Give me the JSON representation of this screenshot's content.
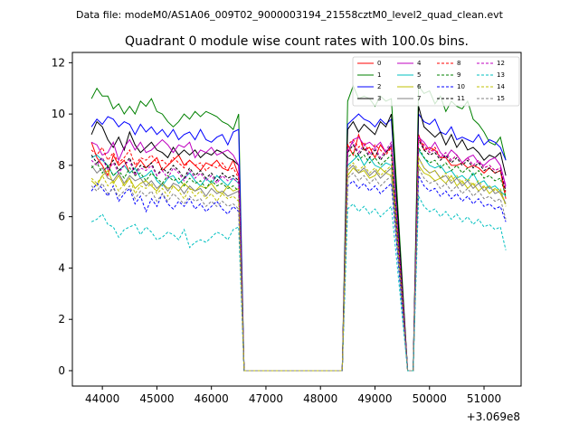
{
  "suptitle": "Data file: modeM0/AS1A06_009T02_9000003194_21558cztM0_level2_quad_clean.evt",
  "chart_data": {
    "type": "line",
    "title": "Quadrant 0 module wise count rates with 100.0s bins.",
    "xlabel": "",
    "ylabel": "",
    "x_offset_label": "+3.069e8",
    "xlim": [
      43450,
      51680
    ],
    "ylim": [
      -0.6,
      12.4
    ],
    "xticks": [
      44000,
      45000,
      46000,
      47000,
      48000,
      49000,
      50000,
      51000
    ],
    "yticks": [
      0,
      2,
      4,
      6,
      8,
      10,
      12
    ],
    "grid": false,
    "legend_position": "top-right",
    "x_start": 43800,
    "x_step": 100,
    "gaps": [
      {
        "from": 46600,
        "to": 48400,
        "value": 0
      },
      {
        "from": 49600,
        "to": 49700,
        "value": 0
      }
    ],
    "series": [
      {
        "name": "0",
        "color": "#ff0000",
        "dash": false,
        "seg1": [
          8.9,
          8.3,
          8.0,
          7.6,
          8.4,
          8.0,
          8.2,
          7.7,
          7.9,
          8.2,
          7.9,
          8.1,
          8.3,
          7.8,
          8.0,
          8.2,
          8.4,
          8.0,
          8.2,
          8.0,
          7.8,
          8.1,
          8.0,
          8.2,
          7.9,
          7.8,
          8.2,
          7.6
        ],
        "seg2": [
          8.8,
          8.4,
          9.2,
          8.6,
          8.7,
          8.3,
          8.8,
          8.5,
          8.7
        ],
        "seg3": [
          9.2,
          8.6,
          8.7,
          8.6,
          8.3,
          8.3,
          8.0,
          8.0,
          8.1,
          7.9,
          8.0,
          7.9,
          7.7,
          7.9,
          7.7,
          7.8,
          6.7
        ]
      },
      {
        "name": "1",
        "color": "#008000",
        "dash": false,
        "seg1": [
          10.6,
          11.0,
          10.7,
          10.7,
          10.2,
          10.4,
          10.0,
          10.3,
          10.0,
          10.5,
          10.3,
          10.6,
          10.1,
          10.0,
          9.7,
          9.5,
          9.7,
          10.0,
          9.8,
          10.1,
          9.9,
          10.1,
          10.0,
          9.9,
          9.7,
          9.6,
          9.4,
          10.0
        ],
        "seg2": [
          10.5,
          11.1,
          10.6,
          10.7,
          10.6,
          10.3,
          10.7,
          10.5,
          10.6
        ],
        "seg3": [
          11.1,
          10.8,
          10.9,
          10.4,
          10.7,
          10.1,
          10.5,
          10.3,
          10.2,
          10.5,
          9.8,
          9.6,
          9.3,
          8.9,
          8.8,
          9.1,
          8.2
        ]
      },
      {
        "name": "2",
        "color": "#0000ff",
        "dash": false,
        "seg1": [
          9.5,
          9.8,
          9.6,
          9.9,
          9.8,
          9.5,
          9.7,
          9.6,
          9.2,
          9.6,
          9.3,
          9.5,
          9.2,
          9.4,
          9.1,
          9.4,
          9.0,
          9.2,
          9.3,
          9.0,
          9.4,
          9.0,
          8.9,
          9.1,
          9.2,
          8.8,
          9.3,
          9.4
        ],
        "seg2": [
          9.6,
          9.8,
          10.0,
          9.8,
          9.7,
          9.5,
          9.8,
          9.6,
          9.8
        ],
        "seg3": [
          10.0,
          9.7,
          9.6,
          9.8,
          9.3,
          9.2,
          9.5,
          9.0,
          9.1,
          9.0,
          8.9,
          9.2,
          8.8,
          9.0,
          8.9,
          8.7,
          8.2
        ]
      },
      {
        "name": "3",
        "color": "#000000",
        "dash": false,
        "seg1": [
          9.2,
          9.7,
          9.5,
          9.0,
          8.7,
          9.1,
          8.6,
          9.3,
          8.8,
          8.5,
          8.7,
          8.9,
          8.6,
          8.5,
          8.3,
          8.7,
          8.4,
          8.6,
          8.4,
          8.6,
          8.3,
          8.5,
          8.4,
          8.6,
          8.5,
          8.3,
          8.2,
          8.0
        ],
        "seg2": [
          9.4,
          9.7,
          9.3,
          9.6,
          9.4,
          9.2,
          9.7,
          9.5,
          10.0
        ],
        "seg3": [
          10.3,
          9.5,
          9.3,
          9.1,
          9.3,
          8.8,
          9.2,
          8.7,
          9.0,
          8.6,
          8.7,
          8.5,
          8.2,
          8.4,
          8.3,
          8.5,
          7.6
        ]
      },
      {
        "name": "4",
        "color": "#c000c0",
        "dash": false,
        "seg1": [
          8.9,
          8.8,
          8.4,
          8.5,
          8.9,
          8.2,
          8.7,
          9.0,
          8.6,
          8.9,
          8.5,
          8.6,
          8.8,
          9.0,
          8.8,
          8.5,
          8.8,
          8.7,
          8.9,
          8.3,
          8.6,
          8.5,
          8.7,
          8.4,
          8.5,
          8.6,
          8.4,
          8.0
        ],
        "seg2": [
          8.5,
          9.0,
          9.1,
          8.8,
          8.9,
          8.7,
          8.9,
          8.5,
          8.8
        ],
        "seg3": [
          9.1,
          8.9,
          8.6,
          8.9,
          8.5,
          8.3,
          8.6,
          8.4,
          8.1,
          8.3,
          8.4,
          8.1,
          8.0,
          8.2,
          8.3,
          8.0,
          7.2
        ]
      },
      {
        "name": "5",
        "color": "#00c0c0",
        "dash": false,
        "seg1": [
          8.3,
          8.4,
          8.2,
          8.0,
          7.6,
          7.8,
          8.0,
          7.7,
          7.9,
          7.5,
          7.6,
          7.8,
          7.4,
          7.2,
          7.5,
          7.6,
          7.3,
          7.5,
          7.7,
          7.4,
          7.2,
          7.5,
          7.3,
          7.6,
          7.4,
          7.2,
          7.5,
          7.3
        ],
        "seg2": [
          8.0,
          8.2,
          8.4,
          8.0,
          8.3,
          8.0,
          7.9,
          8.1,
          8.0
        ],
        "seg3": [
          8.6,
          8.3,
          8.0,
          7.9,
          8.0,
          7.7,
          7.8,
          7.5,
          7.6,
          7.4,
          7.7,
          7.3,
          7.4,
          7.1,
          7.2,
          7.0,
          6.8
        ]
      },
      {
        "name": "6",
        "color": "#c0c000",
        "dash": false,
        "seg1": [
          7.4,
          7.2,
          7.6,
          7.8,
          7.3,
          7.6,
          7.2,
          7.5,
          7.1,
          7.3,
          7.4,
          7.2,
          7.0,
          7.3,
          7.1,
          7.2,
          7.0,
          7.3,
          7.1,
          7.0,
          7.2,
          7.1,
          7.3,
          7.0,
          6.9,
          7.2,
          7.0,
          7.1
        ],
        "seg2": [
          7.6,
          7.9,
          7.7,
          7.8,
          7.5,
          7.6,
          7.9,
          7.7,
          7.6
        ],
        "seg3": [
          8.0,
          7.7,
          7.6,
          7.4,
          7.5,
          7.3,
          7.6,
          7.2,
          7.4,
          7.1,
          7.3,
          7.0,
          7.2,
          6.9,
          7.1,
          6.9,
          6.5
        ]
      },
      {
        "name": "7",
        "color": "#808080",
        "dash": false,
        "seg1": [
          8.0,
          7.7,
          7.9,
          7.5,
          7.4,
          7.7,
          7.3,
          7.6,
          7.4,
          7.5,
          7.2,
          7.4,
          7.1,
          7.3,
          7.0,
          7.3,
          7.2,
          6.9,
          7.2,
          7.0,
          7.1,
          6.8,
          7.1,
          6.9,
          7.0,
          6.8,
          6.9,
          7.0
        ],
        "seg2": [
          7.8,
          8.0,
          7.7,
          7.9,
          7.6,
          7.8,
          7.5,
          7.7,
          7.9
        ],
        "seg3": [
          8.3,
          7.9,
          7.7,
          7.8,
          7.5,
          7.6,
          7.3,
          7.5,
          7.2,
          7.4,
          7.1,
          7.3,
          7.0,
          7.2,
          6.9,
          7.0,
          6.5
        ]
      },
      {
        "name": "8",
        "color": "#ff0000",
        "dash": true,
        "seg1": [
          8.6,
          8.4,
          8.7,
          8.2,
          8.5,
          8.1,
          8.3,
          8.6,
          8.0,
          8.3,
          8.2,
          8.4,
          8.1,
          8.2,
          8.0,
          8.3,
          8.1,
          7.9,
          8.2,
          8.0,
          8.1,
          7.8,
          8.0,
          7.9,
          8.1,
          7.8,
          7.9,
          7.5
        ],
        "seg2": [
          8.8,
          9.0,
          8.7,
          8.9,
          8.5,
          8.8,
          8.6,
          8.4,
          8.7
        ],
        "seg3": [
          9.0,
          8.8,
          8.5,
          8.7,
          8.3,
          8.5,
          8.2,
          8.4,
          8.1,
          8.3,
          8.0,
          8.2,
          7.9,
          8.0,
          7.8,
          7.9,
          6.9
        ]
      },
      {
        "name": "9",
        "color": "#008000",
        "dash": true,
        "seg1": [
          7.9,
          8.1,
          7.7,
          8.0,
          7.6,
          7.8,
          7.5,
          7.9,
          7.6,
          7.7,
          7.4,
          7.7,
          7.5,
          7.3,
          7.6,
          7.4,
          7.5,
          7.2,
          7.5,
          7.3,
          7.4,
          7.1,
          7.4,
          7.2,
          7.3,
          7.1,
          7.2,
          7.0
        ],
        "seg2": [
          8.3,
          8.5,
          8.2,
          8.4,
          8.1,
          8.3,
          8.0,
          8.2,
          8.4
        ],
        "seg3": [
          8.7,
          8.3,
          8.1,
          8.2,
          7.9,
          8.1,
          7.8,
          8.0,
          7.7,
          7.9,
          7.6,
          7.8,
          7.5,
          7.6,
          7.4,
          7.5,
          6.8
        ]
      },
      {
        "name": "10",
        "color": "#0000ff",
        "dash": true,
        "seg1": [
          7.0,
          7.3,
          7.1,
          6.8,
          7.2,
          6.6,
          6.9,
          7.1,
          6.5,
          6.8,
          6.2,
          6.7,
          6.4,
          6.9,
          6.5,
          6.3,
          6.6,
          6.4,
          6.7,
          6.3,
          6.5,
          6.2,
          6.4,
          6.6,
          6.3,
          6.1,
          6.4,
          6.2
        ],
        "seg2": [
          7.2,
          7.4,
          7.1,
          7.3,
          7.0,
          7.2,
          6.9,
          7.1,
          7.3
        ],
        "seg3": [
          7.6,
          7.2,
          7.0,
          7.1,
          6.8,
          7.0,
          6.7,
          6.9,
          6.6,
          6.8,
          6.5,
          6.7,
          6.4,
          6.5,
          6.3,
          6.4,
          5.8
        ]
      },
      {
        "name": "11",
        "color": "#000000",
        "dash": true,
        "seg1": [
          8.4,
          8.1,
          8.3,
          7.9,
          8.2,
          7.8,
          8.0,
          8.3,
          7.7,
          8.0,
          7.9,
          8.1,
          7.6,
          7.9,
          7.7,
          8.0,
          7.8,
          7.5,
          7.9,
          7.6,
          7.8,
          7.5,
          7.7,
          7.4,
          7.7,
          7.5,
          7.6,
          7.4
        ],
        "seg2": [
          8.5,
          8.8,
          8.4,
          8.7,
          8.3,
          8.6,
          8.2,
          8.5,
          8.8
        ],
        "seg3": [
          9.0,
          8.6,
          8.4,
          8.5,
          8.2,
          8.4,
          8.1,
          8.3,
          8.0,
          8.2,
          7.9,
          8.1,
          7.8,
          7.9,
          7.7,
          7.8,
          7.0
        ]
      },
      {
        "name": "12",
        "color": "#c000c0",
        "dash": true,
        "seg1": [
          8.2,
          8.0,
          8.3,
          7.8,
          8.1,
          7.7,
          8.0,
          8.2,
          7.6,
          7.9,
          7.8,
          8.0,
          7.6,
          7.8,
          7.5,
          7.9,
          7.7,
          7.4,
          7.8,
          7.5,
          7.7,
          7.4,
          7.6,
          7.3,
          7.6,
          7.4,
          7.5,
          7.3
        ],
        "seg2": [
          8.6,
          8.9,
          8.5,
          8.8,
          8.4,
          8.7,
          8.3,
          8.6,
          8.9
        ],
        "seg3": [
          9.1,
          8.7,
          8.5,
          8.6,
          8.3,
          8.5,
          8.2,
          8.4,
          8.1,
          8.3,
          8.0,
          8.2,
          7.9,
          8.0,
          7.8,
          7.9,
          7.1
        ]
      },
      {
        "name": "13",
        "color": "#00c0c0",
        "dash": true,
        "seg1": [
          5.8,
          5.9,
          6.1,
          5.7,
          5.6,
          5.2,
          5.5,
          5.6,
          5.7,
          5.3,
          5.6,
          5.4,
          5.1,
          5.2,
          5.4,
          5.3,
          5.1,
          5.5,
          4.8,
          5.0,
          5.1,
          5.0,
          5.2,
          5.4,
          5.3,
          5.1,
          5.5,
          5.6
        ],
        "seg2": [
          6.3,
          6.5,
          6.2,
          6.4,
          6.1,
          6.3,
          6.0,
          6.2,
          6.4
        ],
        "seg3": [
          6.8,
          6.4,
          6.2,
          6.3,
          6.0,
          6.2,
          5.9,
          6.1,
          5.8,
          6.0,
          5.7,
          5.9,
          5.6,
          5.7,
          5.5,
          5.6,
          4.7
        ]
      },
      {
        "name": "14",
        "color": "#c0c000",
        "dash": true,
        "seg1": [
          7.5,
          7.3,
          7.6,
          7.2,
          7.4,
          7.0,
          7.3,
          7.5,
          6.9,
          7.2,
          7.1,
          7.3,
          6.9,
          7.1,
          6.8,
          7.2,
          7.0,
          6.7,
          7.1,
          6.8,
          7.0,
          6.7,
          6.9,
          6.6,
          6.9,
          6.7,
          6.8,
          6.6
        ],
        "seg2": [
          7.9,
          8.1,
          7.8,
          8.0,
          7.7,
          7.9,
          7.6,
          7.8,
          8.0
        ],
        "seg3": [
          8.3,
          7.9,
          7.7,
          7.8,
          7.5,
          7.7,
          7.4,
          7.6,
          7.3,
          7.5,
          7.2,
          7.4,
          7.1,
          7.2,
          7.0,
          7.1,
          6.4
        ]
      },
      {
        "name": "15",
        "color": "#808080",
        "dash": true,
        "seg1": [
          7.2,
          7.0,
          7.3,
          6.9,
          7.1,
          6.8,
          7.0,
          7.2,
          6.7,
          7.0,
          6.8,
          7.0,
          6.6,
          6.9,
          6.6,
          6.9,
          6.7,
          6.5,
          6.8,
          6.6,
          6.7,
          6.4,
          6.6,
          6.4,
          6.6,
          6.4,
          6.5,
          6.3
        ],
        "seg2": [
          7.5,
          7.7,
          7.4,
          7.6,
          7.3,
          7.5,
          7.2,
          7.4,
          7.6
        ],
        "seg3": [
          7.9,
          7.5,
          7.3,
          7.4,
          7.1,
          7.3,
          7.0,
          7.2,
          6.9,
          7.1,
          6.8,
          7.0,
          6.7,
          6.8,
          6.6,
          6.7,
          5.9
        ]
      }
    ]
  }
}
